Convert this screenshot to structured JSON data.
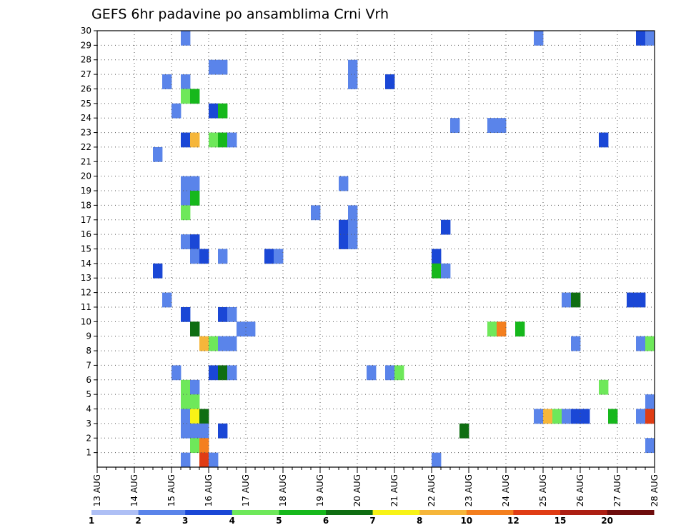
{
  "chart_data": {
    "type": "heatmap",
    "title": "GEFS 6hr padavine po ansamblima Crni Vrh",
    "xlabel": "",
    "ylabel": "",
    "x_tick_labels": [
      "13 AUG",
      "14 AUG",
      "15 AUG",
      "16 AUG",
      "17 AUG",
      "18 AUG",
      "19 AUG",
      "20 AUG",
      "21 AUG",
      "22 AUG",
      "23 AUG",
      "24 AUG",
      "25 AUG",
      "26 AUG",
      "27 AUG",
      "28 AUG"
    ],
    "y_tick_labels": [
      "1",
      "2",
      "3",
      "4",
      "5",
      "6",
      "7",
      "8",
      "9",
      "10",
      "11",
      "12",
      "13",
      "14",
      "15",
      "16",
      "17",
      "18",
      "19",
      "20",
      "21",
      "22",
      "23",
      "24",
      "25",
      "26",
      "27",
      "28",
      "29",
      "30"
    ],
    "xlim": [
      0,
      60
    ],
    "ylim": [
      0,
      30
    ],
    "grid": true,
    "legend_labels": [
      "1",
      "2",
      "3",
      "4",
      "5",
      "6",
      "7",
      "8",
      "10",
      "12",
      "15",
      "20"
    ],
    "legend_colors": [
      "#aebff5",
      "#5a84ea",
      "#1a47d6",
      "#6ee85a",
      "#16b81c",
      "#0f6e12",
      "#f8f316",
      "#f6b63a",
      "#f47f1e",
      "#e03c14",
      "#ad1f13",
      "#6e0d0d"
    ],
    "cells": [
      {
        "t": 9,
        "m": 29,
        "c": 1
      },
      {
        "t": 47,
        "m": 29,
        "c": 1
      },
      {
        "t": 58,
        "m": 29,
        "c": 2
      },
      {
        "t": 59,
        "m": 29,
        "c": 1
      },
      {
        "t": 12,
        "m": 27,
        "c": 1
      },
      {
        "t": 13,
        "m": 27,
        "c": 1
      },
      {
        "t": 27,
        "m": 27,
        "c": 1
      },
      {
        "t": 7,
        "m": 26,
        "c": 1
      },
      {
        "t": 9,
        "m": 26,
        "c": 1
      },
      {
        "t": 27,
        "m": 26,
        "c": 1
      },
      {
        "t": 31,
        "m": 26,
        "c": 2
      },
      {
        "t": 9,
        "m": 25,
        "c": 3
      },
      {
        "t": 10,
        "m": 25,
        "c": 4
      },
      {
        "t": 8,
        "m": 24,
        "c": 1
      },
      {
        "t": 12,
        "m": 24,
        "c": 2
      },
      {
        "t": 13,
        "m": 24,
        "c": 4
      },
      {
        "t": 38,
        "m": 23,
        "c": 1
      },
      {
        "t": 42,
        "m": 23,
        "c": 1
      },
      {
        "t": 43,
        "m": 23,
        "c": 1
      },
      {
        "t": 9,
        "m": 22,
        "c": 2
      },
      {
        "t": 10,
        "m": 22,
        "c": 7
      },
      {
        "t": 12,
        "m": 22,
        "c": 3
      },
      {
        "t": 13,
        "m": 22,
        "c": 4
      },
      {
        "t": 14,
        "m": 22,
        "c": 1
      },
      {
        "t": 54,
        "m": 22,
        "c": 2
      },
      {
        "t": 6,
        "m": 21,
        "c": 1
      },
      {
        "t": 9,
        "m": 19,
        "c": 1
      },
      {
        "t": 10,
        "m": 19,
        "c": 1
      },
      {
        "t": 26,
        "m": 19,
        "c": 1
      },
      {
        "t": 9,
        "m": 18,
        "c": 1
      },
      {
        "t": 10,
        "m": 18,
        "c": 4
      },
      {
        "t": 9,
        "m": 17,
        "c": 3
      },
      {
        "t": 23,
        "m": 17,
        "c": 1
      },
      {
        "t": 27,
        "m": 17,
        "c": 1
      },
      {
        "t": 26,
        "m": 16,
        "c": 2
      },
      {
        "t": 27,
        "m": 16,
        "c": 1
      },
      {
        "t": 37,
        "m": 16,
        "c": 2
      },
      {
        "t": 9,
        "m": 15,
        "c": 1
      },
      {
        "t": 10,
        "m": 15,
        "c": 2
      },
      {
        "t": 26,
        "m": 15,
        "c": 2
      },
      {
        "t": 27,
        "m": 15,
        "c": 1
      },
      {
        "t": 10,
        "m": 14,
        "c": 1
      },
      {
        "t": 11,
        "m": 14,
        "c": 2
      },
      {
        "t": 13,
        "m": 14,
        "c": 1
      },
      {
        "t": 18,
        "m": 14,
        "c": 2
      },
      {
        "t": 19,
        "m": 14,
        "c": 1
      },
      {
        "t": 36,
        "m": 14,
        "c": 2
      },
      {
        "t": 6,
        "m": 13,
        "c": 2
      },
      {
        "t": 36,
        "m": 13,
        "c": 4
      },
      {
        "t": 37,
        "m": 13,
        "c": 1
      },
      {
        "t": 7,
        "m": 11,
        "c": 1
      },
      {
        "t": 50,
        "m": 11,
        "c": 1
      },
      {
        "t": 51,
        "m": 11,
        "c": 5
      },
      {
        "t": 57,
        "m": 11,
        "c": 2
      },
      {
        "t": 58,
        "m": 11,
        "c": 2
      },
      {
        "t": 9,
        "m": 10,
        "c": 2
      },
      {
        "t": 13,
        "m": 10,
        "c": 2
      },
      {
        "t": 14,
        "m": 10,
        "c": 1
      },
      {
        "t": 10,
        "m": 9,
        "c": 5
      },
      {
        "t": 15,
        "m": 9,
        "c": 1
      },
      {
        "t": 16,
        "m": 9,
        "c": 1
      },
      {
        "t": 42,
        "m": 9,
        "c": 3
      },
      {
        "t": 43,
        "m": 9,
        "c": 8
      },
      {
        "t": 45,
        "m": 9,
        "c": 4
      },
      {
        "t": 11,
        "m": 8,
        "c": 7
      },
      {
        "t": 12,
        "m": 8,
        "c": 3
      },
      {
        "t": 13,
        "m": 8,
        "c": 1
      },
      {
        "t": 14,
        "m": 8,
        "c": 1
      },
      {
        "t": 51,
        "m": 8,
        "c": 1
      },
      {
        "t": 58,
        "m": 8,
        "c": 1
      },
      {
        "t": 59,
        "m": 8,
        "c": 3
      },
      {
        "t": 8,
        "m": 6,
        "c": 1
      },
      {
        "t": 12,
        "m": 6,
        "c": 2
      },
      {
        "t": 13,
        "m": 6,
        "c": 5
      },
      {
        "t": 14,
        "m": 6,
        "c": 1
      },
      {
        "t": 29,
        "m": 6,
        "c": 1
      },
      {
        "t": 31,
        "m": 6,
        "c": 1
      },
      {
        "t": 32,
        "m": 6,
        "c": 3
      },
      {
        "t": 9,
        "m": 5,
        "c": 3
      },
      {
        "t": 10,
        "m": 5,
        "c": 1
      },
      {
        "t": 54,
        "m": 5,
        "c": 3
      },
      {
        "t": 9,
        "m": 4,
        "c": 3
      },
      {
        "t": 10,
        "m": 4,
        "c": 3
      },
      {
        "t": 59,
        "m": 4,
        "c": 1
      },
      {
        "t": 9,
        "m": 3,
        "c": 1
      },
      {
        "t": 10,
        "m": 3,
        "c": 6
      },
      {
        "t": 11,
        "m": 3,
        "c": 5
      },
      {
        "t": 47,
        "m": 3,
        "c": 1
      },
      {
        "t": 48,
        "m": 3,
        "c": 7
      },
      {
        "t": 49,
        "m": 3,
        "c": 3
      },
      {
        "t": 50,
        "m": 3,
        "c": 1
      },
      {
        "t": 51,
        "m": 3,
        "c": 2
      },
      {
        "t": 52,
        "m": 3,
        "c": 2
      },
      {
        "t": 55,
        "m": 3,
        "c": 4
      },
      {
        "t": 58,
        "m": 3,
        "c": 1
      },
      {
        "t": 59,
        "m": 3,
        "c": 9
      },
      {
        "t": 9,
        "m": 2,
        "c": 1
      },
      {
        "t": 10,
        "m": 2,
        "c": 1
      },
      {
        "t": 11,
        "m": 2,
        "c": 1
      },
      {
        "t": 13,
        "m": 2,
        "c": 2
      },
      {
        "t": 39,
        "m": 2,
        "c": 5
      },
      {
        "t": 10,
        "m": 1,
        "c": 3
      },
      {
        "t": 11,
        "m": 1,
        "c": 8
      },
      {
        "t": 59,
        "m": 1,
        "c": 1
      },
      {
        "t": 9,
        "m": 0,
        "c": 1
      },
      {
        "t": 11,
        "m": 0,
        "c": 9
      },
      {
        "t": 12,
        "m": 0,
        "c": 1
      },
      {
        "t": 36,
        "m": 0,
        "c": 1
      }
    ]
  }
}
